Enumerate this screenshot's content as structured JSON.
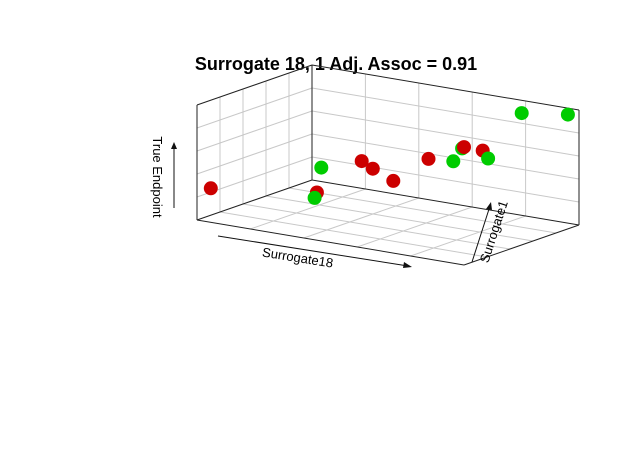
{
  "chart_data": {
    "type": "scatter",
    "projection": "3d",
    "title": "Surrogate 18, 1  Adj. Assoc = 0.91",
    "xlabel": "Surrogate18",
    "ylabel": "Surrogate1",
    "zlabel": "True Endpoint",
    "grid": true,
    "tick_labels": false,
    "colors": {
      "group_a": "#cc0000",
      "group_b": "#00cc00"
    },
    "series": [
      {
        "name": "",
        "color": "#cc0000",
        "points": [
          {
            "x": 0.03,
            "y": 0.05,
            "z": 0.27
          },
          {
            "x": 0.32,
            "y": 0.3,
            "z": 0.26
          },
          {
            "x": 0.38,
            "y": 0.55,
            "z": 0.47
          },
          {
            "x": 0.43,
            "y": 0.53,
            "z": 0.43
          },
          {
            "x": 0.52,
            "y": 0.5,
            "z": 0.37
          },
          {
            "x": 0.6,
            "y": 0.62,
            "z": 0.55
          },
          {
            "x": 0.72,
            "y": 0.65,
            "z": 0.69
          },
          {
            "x": 0.76,
            "y": 0.72,
            "z": 0.65
          }
        ]
      },
      {
        "name": "",
        "color": "#00cc00",
        "points": [
          {
            "x": 0.25,
            "y": 0.5,
            "z": 0.38
          },
          {
            "x": 0.32,
            "y": 0.28,
            "z": 0.22
          },
          {
            "x": 0.68,
            "y": 0.65,
            "z": 0.55
          },
          {
            "x": 0.7,
            "y": 0.68,
            "z": 0.66
          },
          {
            "x": 0.78,
            "y": 0.72,
            "z": 0.59
          },
          {
            "x": 0.82,
            "y": 0.92,
            "z": 0.93
          },
          {
            "x": 0.98,
            "y": 0.95,
            "z": 0.97
          }
        ]
      }
    ]
  }
}
